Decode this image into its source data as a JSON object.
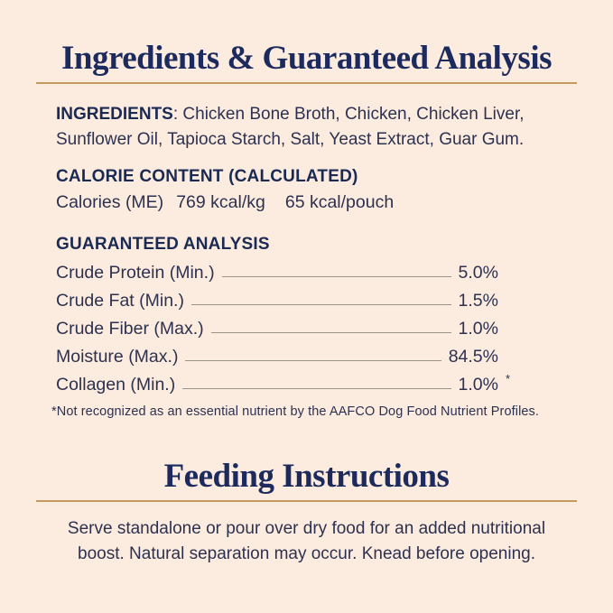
{
  "label": {
    "section1": {
      "title": "Ingredients & Guaranteed Analysis",
      "ingredients": {
        "heading": "INGREDIENTS",
        "line1_rest": ": Chicken Bone Broth, Chicken, Chicken Liver,",
        "line2": "Sunflower Oil, Tapioca Starch, Salt, Yeast Extract, Guar Gum."
      },
      "calorie": {
        "heading": "CALORIE CONTENT (CALCULATED)",
        "label": "Calories (ME)",
        "per_kg": "769 kcal/kg",
        "per_pouch": "65 kcal/pouch"
      },
      "analysis": {
        "heading": "GUARANTEED ANALYSIS",
        "rows": [
          {
            "label": "Crude Protein (Min.)",
            "value": "5.0%",
            "marker": ""
          },
          {
            "label": "Crude Fat (Min.)",
            "value": "1.5%",
            "marker": ""
          },
          {
            "label": "Crude Fiber (Max.)",
            "value": "1.0%",
            "marker": ""
          },
          {
            "label": "Moisture (Max.)",
            "value": "84.5%",
            "marker": ""
          },
          {
            "label": "Collagen (Min.)",
            "value": "1.0%",
            "marker": "*"
          }
        ],
        "footnote": "*Not recognized as an essential nutrient by the AAFCO Dog Food Nutrient Profiles."
      }
    },
    "section2": {
      "title": "Feeding Instructions",
      "line1": "Serve standalone or pour over dry food for an added nutritional",
      "line2": "boost. Natural separation may occur. Knead before opening."
    },
    "colors": {
      "background": "#fcecdf",
      "title_navy": "#1c2a5e",
      "body_text": "#2d3150",
      "gold_rule": "#c49a5e",
      "leader_line": "#9b9588"
    }
  }
}
